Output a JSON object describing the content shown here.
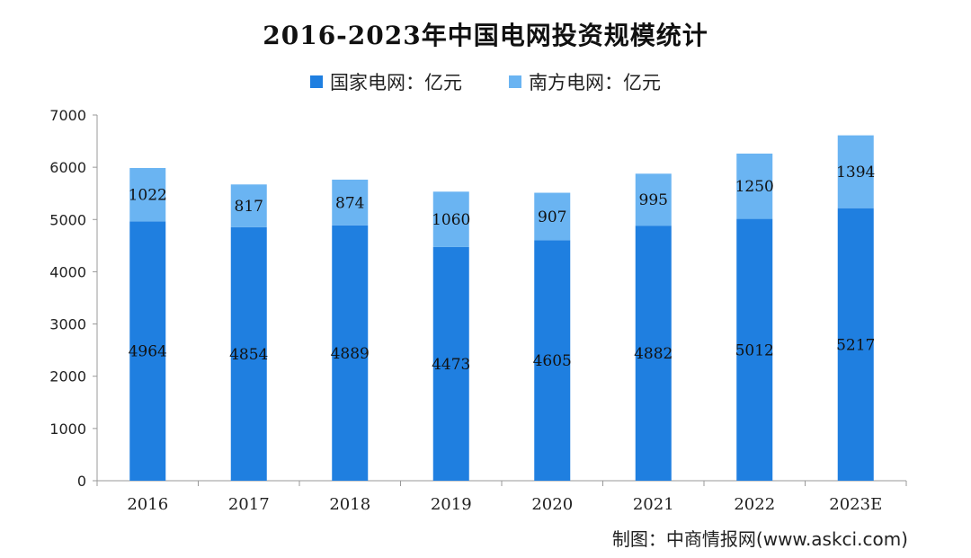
{
  "chart_data": {
    "type": "bar",
    "stacked": true,
    "title": "2016-2023年中国电网投资规模统计",
    "categories": [
      "2016",
      "2017",
      "2018",
      "2019",
      "2020",
      "2021",
      "2022",
      "2023E"
    ],
    "series": [
      {
        "name": "国家电网：亿元",
        "color": "#1f7fe0",
        "values": [
          4964,
          4854,
          4889,
          4473,
          4605,
          4882,
          5012,
          5217
        ]
      },
      {
        "name": "南方电网：亿元",
        "color": "#6ab4f2",
        "values": [
          1022,
          817,
          874,
          1060,
          907,
          995,
          1250,
          1394
        ]
      }
    ],
    "ylim": [
      0,
      7000
    ],
    "yticks": [
      0,
      1000,
      2000,
      3000,
      4000,
      5000,
      6000,
      7000
    ],
    "grid": false,
    "legend_position": "top-center"
  },
  "source": "制图：中商情报网(www.askci.com)"
}
